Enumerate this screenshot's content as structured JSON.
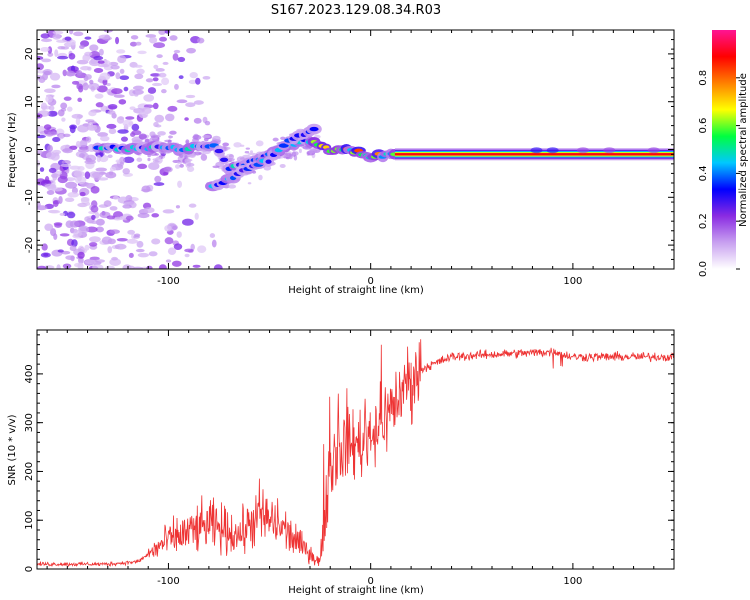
{
  "figure": {
    "title": "S167.2023.129.08.34.R03"
  },
  "colors": {
    "snr_line": "#ee3333",
    "axes": "#000000",
    "colormap": [
      "#ffffff",
      "#c8a0f0",
      "#8a2be2",
      "#0000ff",
      "#00c8ff",
      "#00ff40",
      "#ffff00",
      "#ff8000",
      "#ff0000",
      "#ff1493"
    ]
  },
  "chart_data": [
    {
      "type": "heatmap",
      "name": "spectrogram",
      "title": "",
      "xlabel": "Height of straight line (km)",
      "ylabel": "Frequency (Hz)",
      "xlim": [
        -165,
        150
      ],
      "ylim": [
        -25,
        25
      ],
      "xticks": [
        -100,
        0,
        100
      ],
      "yticks": [
        -20,
        -10,
        0,
        10,
        20
      ],
      "colorbar": {
        "label": "Normalized spectral amplitude",
        "range": [
          0,
          1
        ],
        "ticks": [
          "0.0",
          "0.2",
          "0.4",
          "0.6",
          "0.8"
        ]
      },
      "ridge": {
        "description_points": [
          {
            "x": -135,
            "y": 0.5
          },
          {
            "x": -120,
            "y": 0
          },
          {
            "x": -105,
            "y": 0.5
          },
          {
            "x": -95,
            "y": 0
          },
          {
            "x": -85,
            "y": 0.5
          },
          {
            "x": -77,
            "y": 1
          },
          {
            "x": -70,
            "y": -4
          },
          {
            "x": -55,
            "y": -2
          },
          {
            "x": -40,
            "y": 1
          },
          {
            "x": -30,
            "y": 2
          },
          {
            "x": -20,
            "y": 0
          },
          {
            "x": -10,
            "y": 0
          },
          {
            "x": 0,
            "y": -1.5
          },
          {
            "x": 10,
            "y": -1
          },
          {
            "x": 150,
            "y": -1
          }
        ],
        "second_branch": [
          {
            "x": -78,
            "y": -8
          },
          {
            "x": -65,
            "y": -5
          },
          {
            "x": -50,
            "y": -2
          },
          {
            "x": -40,
            "y": 2
          },
          {
            "x": -30,
            "y": 4
          }
        ]
      }
    },
    {
      "type": "line",
      "name": "snr",
      "title": "",
      "xlabel": "Height of straight line (km)",
      "ylabel": "SNR (10 * v/v)",
      "xlim": [
        -165,
        150
      ],
      "ylim": [
        0,
        490
      ],
      "xticks": [
        -100,
        0,
        100
      ],
      "yticks": [
        0,
        100,
        200,
        300,
        400
      ],
      "series": [
        {
          "envelope": [
            {
              "x": -165,
              "y": 10
            },
            {
              "x": -130,
              "y": 10
            },
            {
              "x": -115,
              "y": 15
            },
            {
              "x": -100,
              "y": 60
            },
            {
              "x": -80,
              "y": 90
            },
            {
              "x": -65,
              "y": 70
            },
            {
              "x": -55,
              "y": 110
            },
            {
              "x": -45,
              "y": 90
            },
            {
              "x": -35,
              "y": 50
            },
            {
              "x": -25,
              "y": 15
            },
            {
              "x": -20,
              "y": 220
            },
            {
              "x": -15,
              "y": 250
            },
            {
              "x": -5,
              "y": 260
            },
            {
              "x": 5,
              "y": 300
            },
            {
              "x": 15,
              "y": 360
            },
            {
              "x": 25,
              "y": 410
            },
            {
              "x": 40,
              "y": 435
            },
            {
              "x": 60,
              "y": 440
            },
            {
              "x": 90,
              "y": 445
            },
            {
              "x": 100,
              "y": 435
            },
            {
              "x": 150,
              "y": 435
            }
          ]
        }
      ]
    }
  ]
}
